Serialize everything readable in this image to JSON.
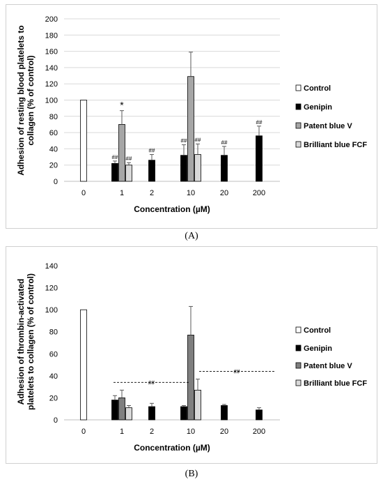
{
  "chart_data": [
    {
      "panel": "(A)",
      "type": "bar",
      "ylabel_lines": [
        "Adhesion of resting blood platelets to",
        "collagen (% of control)"
      ],
      "xlabel": "Concentration (µM)",
      "ylim": [
        0,
        200
      ],
      "yticks": [
        0,
        20,
        40,
        60,
        80,
        100,
        120,
        140,
        160,
        180,
        200
      ],
      "grid": true,
      "legend_position": "right",
      "categories": [
        "0",
        "1",
        "2",
        "10",
        "20",
        "200"
      ],
      "series": [
        {
          "name": "Control",
          "color": "#ffffff",
          "values": [
            100,
            null,
            null,
            null,
            null,
            null
          ],
          "errors": [
            0,
            null,
            null,
            null,
            null,
            null
          ]
        },
        {
          "name": "Genipin",
          "color": "#000000",
          "values": [
            null,
            22,
            26,
            32,
            32,
            56
          ],
          "errors": [
            null,
            3,
            7,
            13,
            11,
            12
          ]
        },
        {
          "name": "Patent blue V",
          "color": "#a6a6a6",
          "values": [
            null,
            70,
            null,
            129,
            null,
            null
          ],
          "errors": [
            null,
            17,
            null,
            30,
            null,
            null
          ]
        },
        {
          "name": "Brilliant blue FCF",
          "color": "#d9d9d9",
          "values": [
            null,
            20,
            null,
            33,
            null,
            null
          ],
          "errors": [
            null,
            3,
            null,
            13,
            null,
            null
          ]
        }
      ],
      "annotations": [
        {
          "text": "##",
          "category": "1",
          "series": "Genipin"
        },
        {
          "text": "*",
          "category": "1",
          "series": "Patent blue V"
        },
        {
          "text": "##",
          "category": "1",
          "series": "Brilliant blue FCF"
        },
        {
          "text": "##",
          "category": "2",
          "series": "Genipin"
        },
        {
          "text": "##",
          "category": "10",
          "series": "Genipin"
        },
        {
          "text": "##",
          "category": "10",
          "series": "Brilliant blue FCF"
        },
        {
          "text": "##",
          "category": "20",
          "series": "Genipin"
        },
        {
          "text": "##",
          "category": "200",
          "series": "Genipin"
        }
      ]
    },
    {
      "panel": "(B)",
      "type": "bar",
      "ylabel_lines": [
        "Adhesion of thrombin-activated",
        "platelets to collagen (% of control)"
      ],
      "xlabel": "Concentration (µM)",
      "ylim": [
        0,
        140
      ],
      "yticks": [
        0,
        20,
        40,
        60,
        80,
        100,
        120,
        140
      ],
      "grid": false,
      "legend_position": "right",
      "categories": [
        "0",
        "1",
        "2",
        "10",
        "20",
        "200"
      ],
      "series": [
        {
          "name": "Control",
          "color": "#ffffff",
          "values": [
            100,
            null,
            null,
            null,
            null,
            null
          ],
          "errors": [
            0,
            null,
            null,
            null,
            null,
            null
          ]
        },
        {
          "name": "Genipin",
          "color": "#000000",
          "values": [
            null,
            18,
            12,
            12,
            13,
            9
          ],
          "errors": [
            null,
            4,
            3,
            1,
            1,
            2
          ]
        },
        {
          "name": "Patent blue V",
          "color": "#7f7f7f",
          "values": [
            null,
            20,
            null,
            77,
            null,
            null
          ],
          "errors": [
            null,
            7,
            null,
            26,
            null,
            null
          ]
        },
        {
          "name": "Brilliant blue FCF",
          "color": "#d9d9d9",
          "values": [
            null,
            11,
            null,
            27,
            null,
            null
          ],
          "errors": [
            null,
            2,
            null,
            10,
            null,
            null
          ]
        }
      ],
      "bracket_annotations": [
        {
          "text": "##",
          "y": 34,
          "from_category": "1",
          "to_category": "10"
        },
        {
          "text": "##",
          "y": 44,
          "from_category": "10",
          "to_category": "200"
        }
      ]
    }
  ]
}
